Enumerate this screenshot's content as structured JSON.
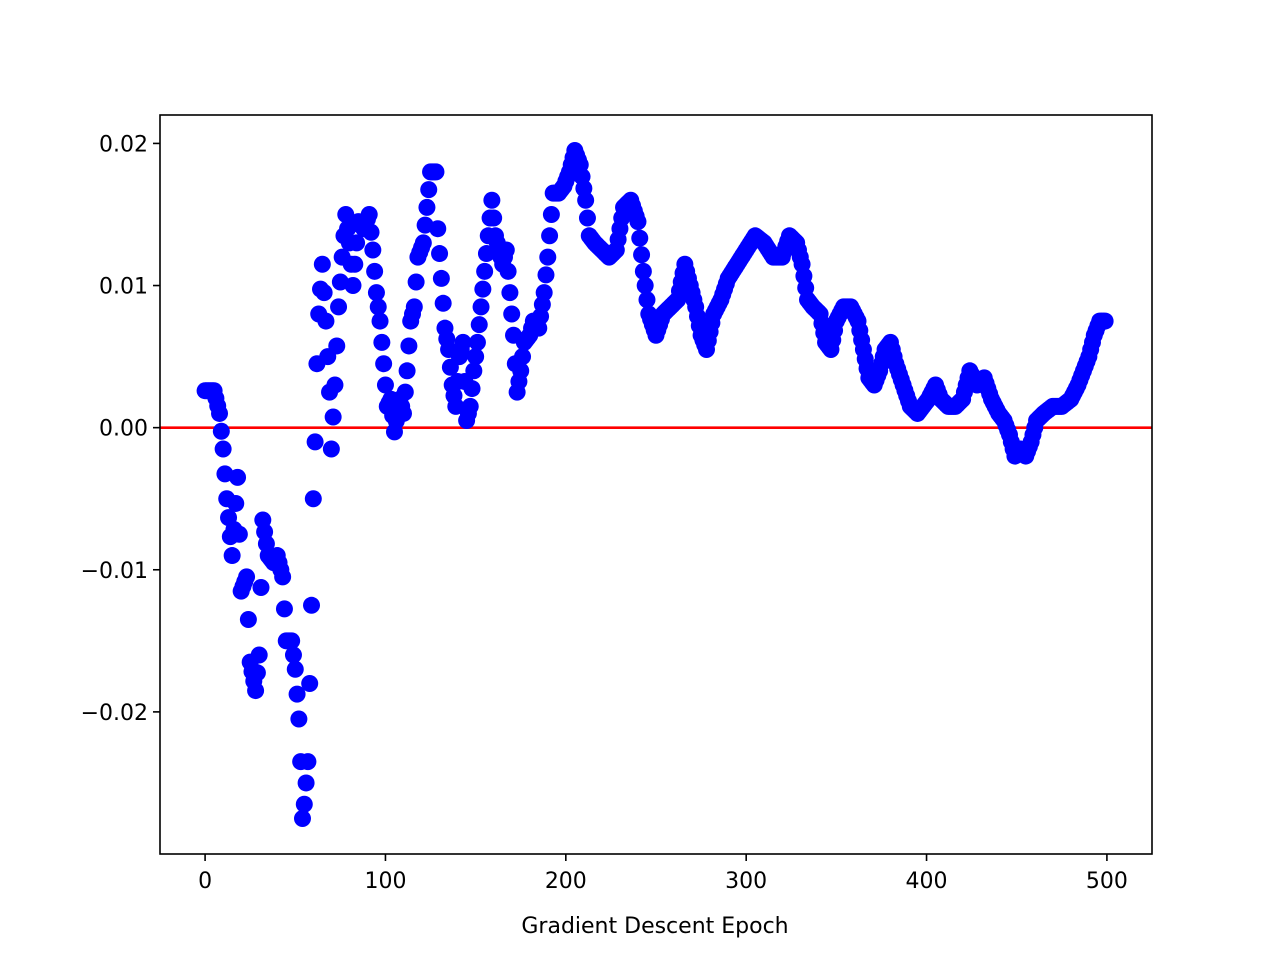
{
  "chart_data": {
    "type": "scatter",
    "title": "",
    "xlabel": "Gradient Descent Epoch",
    "ylabel": "",
    "xlim": [
      -25,
      525
    ],
    "ylim": [
      -0.03,
      0.022
    ],
    "xticks": [
      0,
      100,
      200,
      300,
      400,
      500
    ],
    "xtick_labels": [
      "0",
      "100",
      "200",
      "300",
      "400",
      "500"
    ],
    "yticks": [
      -0.02,
      -0.01,
      0.0,
      0.01,
      0.02
    ],
    "ytick_labels": [
      "−0.02",
      "−0.01",
      "0.00",
      "0.01",
      "0.02"
    ],
    "grid": false,
    "reference_line": {
      "y": 0.0,
      "color": "#ff0000"
    },
    "marker_color": "#0000ff",
    "series": [
      {
        "knots": [
          [
            0,
            0.0026
          ],
          [
            5,
            0.0026
          ],
          [
            8,
            0.001
          ],
          [
            10,
            -0.0015
          ],
          [
            12,
            -0.005
          ],
          [
            15,
            -0.009
          ],
          [
            18,
            -0.0035
          ],
          [
            20,
            -0.0115
          ],
          [
            23,
            -0.0105
          ],
          [
            25,
            -0.0165
          ],
          [
            28,
            -0.0185
          ],
          [
            30,
            -0.016
          ],
          [
            32,
            -0.0065
          ],
          [
            35,
            -0.009
          ],
          [
            38,
            -0.0095
          ],
          [
            40,
            -0.009
          ],
          [
            43,
            -0.0105
          ],
          [
            45,
            -0.015
          ],
          [
            48,
            -0.015
          ],
          [
            50,
            -0.017
          ],
          [
            52,
            -0.0205
          ],
          [
            53,
            -0.0235
          ],
          [
            54,
            -0.0275
          ],
          [
            55,
            -0.0265
          ],
          [
            57,
            -0.0235
          ],
          [
            58,
            -0.018
          ],
          [
            59,
            -0.0125
          ],
          [
            60,
            -0.005
          ],
          [
            61,
            -0.001
          ],
          [
            62,
            0.0045
          ],
          [
            63,
            0.008
          ],
          [
            65,
            0.0115
          ],
          [
            67,
            0.0075
          ],
          [
            69,
            0.0025
          ],
          [
            70,
            -0.0015
          ],
          [
            72,
            0.003
          ],
          [
            74,
            0.0085
          ],
          [
            76,
            0.012
          ],
          [
            78,
            0.015
          ],
          [
            80,
            0.013
          ],
          [
            82,
            0.01
          ],
          [
            85,
            0.0145
          ],
          [
            88,
            0.014
          ],
          [
            91,
            0.015
          ],
          [
            93,
            0.0125
          ],
          [
            95,
            0.0095
          ],
          [
            97,
            0.0075
          ],
          [
            99,
            0.0045
          ],
          [
            101,
            0.0015
          ],
          [
            103,
            0.002
          ],
          [
            105,
            -0.0003
          ],
          [
            108,
            0.002
          ],
          [
            110,
            0.001
          ],
          [
            112,
            0.004
          ],
          [
            114,
            0.0075
          ],
          [
            116,
            0.0085
          ],
          [
            118,
            0.012
          ],
          [
            121,
            0.013
          ],
          [
            123,
            0.0155
          ],
          [
            125,
            0.018
          ],
          [
            128,
            0.018
          ],
          [
            129,
            0.014
          ],
          [
            131,
            0.0105
          ],
          [
            133,
            0.007
          ],
          [
            135,
            0.0055
          ],
          [
            137,
            0.003
          ],
          [
            139,
            0.0015
          ],
          [
            141,
            0.005
          ],
          [
            143,
            0.006
          ],
          [
            145,
            0.0005
          ],
          [
            147,
            0.0015
          ],
          [
            149,
            0.004
          ],
          [
            151,
            0.006
          ],
          [
            153,
            0.0085
          ],
          [
            155,
            0.011
          ],
          [
            157,
            0.0135
          ],
          [
            159,
            0.016
          ],
          [
            161,
            0.0135
          ],
          [
            163,
            0.0125
          ],
          [
            165,
            0.0115
          ],
          [
            167,
            0.0125
          ],
          [
            169,
            0.0095
          ],
          [
            171,
            0.0065
          ],
          [
            173,
            0.0025
          ],
          [
            175,
            0.004
          ],
          [
            177,
            0.006
          ],
          [
            180,
            0.0065
          ],
          [
            182,
            0.0075
          ],
          [
            185,
            0.007
          ],
          [
            188,
            0.0095
          ],
          [
            190,
            0.012
          ],
          [
            193,
            0.0165
          ],
          [
            196,
            0.0165
          ],
          [
            199,
            0.017
          ],
          [
            202,
            0.018
          ],
          [
            205,
            0.0195
          ],
          [
            208,
            0.0185
          ],
          [
            211,
            0.016
          ],
          [
            213,
            0.0135
          ],
          [
            216,
            0.013
          ],
          [
            220,
            0.0125
          ],
          [
            224,
            0.012
          ],
          [
            228,
            0.0125
          ],
          [
            232,
            0.0155
          ],
          [
            236,
            0.016
          ],
          [
            240,
            0.0145
          ],
          [
            243,
            0.011
          ],
          [
            246,
            0.008
          ],
          [
            250,
            0.0065
          ],
          [
            254,
            0.008
          ],
          [
            258,
            0.0085
          ],
          [
            262,
            0.009
          ],
          [
            266,
            0.0115
          ],
          [
            269,
            0.01
          ],
          [
            272,
            0.0085
          ],
          [
            275,
            0.0065
          ],
          [
            278,
            0.0055
          ],
          [
            282,
            0.008
          ],
          [
            286,
            0.009
          ],
          [
            290,
            0.0105
          ],
          [
            295,
            0.0115
          ],
          [
            300,
            0.0125
          ],
          [
            305,
            0.0135
          ],
          [
            310,
            0.013
          ],
          [
            315,
            0.012
          ],
          [
            320,
            0.012
          ],
          [
            324,
            0.0135
          ],
          [
            328,
            0.013
          ],
          [
            331,
            0.0115
          ],
          [
            334,
            0.009
          ],
          [
            337,
            0.0085
          ],
          [
            341,
            0.008
          ],
          [
            344,
            0.006
          ],
          [
            347,
            0.0055
          ],
          [
            350,
            0.0075
          ],
          [
            354,
            0.0085
          ],
          [
            358,
            0.0085
          ],
          [
            362,
            0.0075
          ],
          [
            365,
            0.0055
          ],
          [
            368,
            0.0035
          ],
          [
            371,
            0.003
          ],
          [
            374,
            0.004
          ],
          [
            377,
            0.0055
          ],
          [
            380,
            0.006
          ],
          [
            383,
            0.0045
          ],
          [
            387,
            0.003
          ],
          [
            391,
            0.0015
          ],
          [
            395,
            0.001
          ],
          [
            398,
            0.0015
          ],
          [
            401,
            0.002
          ],
          [
            405,
            0.003
          ],
          [
            408,
            0.002
          ],
          [
            412,
            0.0015
          ],
          [
            416,
            0.0015
          ],
          [
            420,
            0.002
          ],
          [
            424,
            0.004
          ],
          [
            428,
            0.003
          ],
          [
            432,
            0.0035
          ],
          [
            436,
            0.002
          ],
          [
            440,
            0.001
          ],
          [
            443,
            0.0005
          ],
          [
            446,
            -0.0005
          ],
          [
            449,
            -0.002
          ],
          [
            452,
            -0.0015
          ],
          [
            455,
            -0.002
          ],
          [
            458,
            -0.001
          ],
          [
            461,
            0.0005
          ],
          [
            465,
            0.001
          ],
          [
            470,
            0.0015
          ],
          [
            475,
            0.0015
          ],
          [
            480,
            0.002
          ],
          [
            484,
            0.003
          ],
          [
            487,
            0.004
          ],
          [
            490,
            0.005
          ],
          [
            493,
            0.0065
          ],
          [
            496,
            0.0075
          ],
          [
            499,
            0.0075
          ]
        ]
      }
    ]
  }
}
